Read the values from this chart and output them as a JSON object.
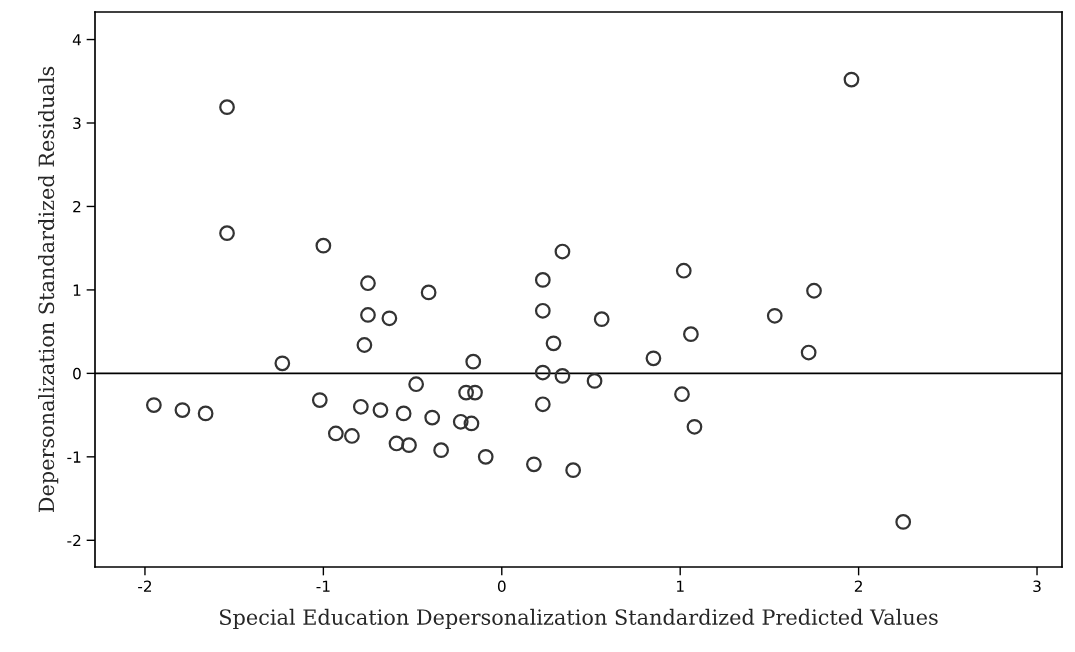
{
  "chart_data": {
    "type": "scatter",
    "xlabel": "Special Education Depersonalization Standardized Predicted Values",
    "ylabel": "Depersonalization Standardized Residuals",
    "xlim": [
      -2.28,
      3.14
    ],
    "ylim": [
      -2.32,
      4.33
    ],
    "xticks": [
      -2,
      -1,
      0,
      1,
      2,
      3
    ],
    "yticks": [
      -2,
      -1,
      0,
      1,
      2,
      3,
      4
    ],
    "grid": false,
    "marker": "circle",
    "ref_lines": [
      {
        "axis": "y",
        "value": 0,
        "color": "#000000"
      }
    ],
    "series": [
      {
        "color": "#333333",
        "x": [
          1.96,
          -1.54,
          -1.54,
          -1.0,
          -0.75,
          -0.75,
          -0.63,
          -0.77,
          -1.23,
          -0.48,
          -1.95,
          -1.79,
          -1.66,
          -1.02,
          -0.79,
          -0.68,
          -0.55,
          -0.93,
          -0.84,
          -0.59,
          -0.52,
          -0.41,
          0.34,
          1.02,
          0.23,
          0.23,
          0.56,
          0.29,
          1.06,
          0.85,
          -0.16,
          0.23,
          0.34,
          0.52,
          -0.2,
          -0.15,
          1.01,
          0.23,
          1.08,
          -0.39,
          -0.23,
          -0.17,
          -0.34,
          -0.09,
          0.18,
          0.4,
          1.75,
          1.53,
          1.72,
          2.25
        ],
        "values": [
          3.52,
          3.19,
          1.68,
          1.53,
          1.08,
          0.7,
          0.66,
          0.34,
          0.12,
          -0.13,
          -0.38,
          -0.44,
          -0.48,
          -0.32,
          -0.4,
          -0.44,
          -0.48,
          -0.72,
          -0.75,
          -0.84,
          -0.86,
          0.97,
          1.46,
          1.23,
          1.12,
          0.75,
          0.65,
          0.36,
          0.47,
          0.18,
          0.14,
          0.01,
          -0.03,
          -0.09,
          -0.23,
          -0.23,
          -0.25,
          -0.37,
          -0.64,
          -0.53,
          -0.58,
          -0.6,
          -0.92,
          -1.0,
          -1.09,
          -1.16,
          0.99,
          0.69,
          0.25,
          -1.78
        ]
      }
    ]
  }
}
